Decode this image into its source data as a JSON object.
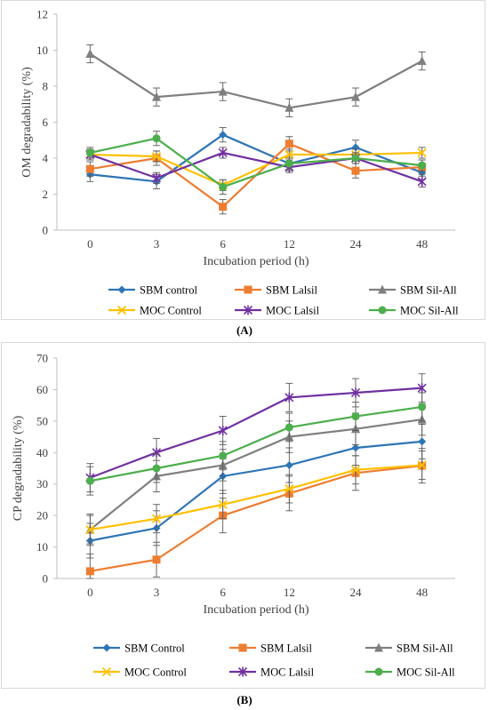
{
  "charts": [
    {
      "id": "A",
      "caption": "(A)",
      "chart_data": {
        "type": "line",
        "categories": [
          "0",
          "3",
          "6",
          "12",
          "24",
          "48"
        ],
        "xlabel": "Incubation period (h)",
        "ylabel": "OM degradability (%)",
        "ylim": [
          0,
          12
        ],
        "yticks": [
          0,
          2,
          4,
          6,
          8,
          10,
          12
        ],
        "grid": false,
        "legend_position": "bottom",
        "series": [
          {
            "name": "SBM control",
            "color": "#2e75b6",
            "marker": "diamond",
            "values": [
              3.1,
              2.7,
              5.3,
              3.7,
              4.6,
              3.2
            ],
            "errors": [
              0.4,
              0.4,
              0.4,
              0.4,
              0.4,
              0.4
            ]
          },
          {
            "name": "SBM Lalsil",
            "color": "#ed7d31",
            "marker": "square",
            "values": [
              3.4,
              4.0,
              1.3,
              4.8,
              3.3,
              3.5
            ],
            "errors": [
              0.4,
              0.4,
              0.4,
              0.4,
              0.4,
              0.4
            ]
          },
          {
            "name": "SBM Sil-All",
            "color": "#7f7f7f",
            "marker": "triangle",
            "values": [
              9.8,
              7.4,
              7.7,
              6.8,
              7.4,
              9.4
            ],
            "errors": [
              0.5,
              0.5,
              0.5,
              0.5,
              0.5,
              0.5
            ]
          },
          {
            "name": "MOC Control",
            "color": "#ffc000",
            "marker": "x",
            "values": [
              4.2,
              4.1,
              2.5,
              4.2,
              4.2,
              4.3
            ],
            "errors": [
              0.3,
              0.3,
              0.3,
              0.3,
              0.3,
              0.3
            ]
          },
          {
            "name": "MOC Lalsil",
            "color": "#7030a0",
            "marker": "star",
            "values": [
              4.2,
              2.9,
              4.3,
              3.5,
              4.0,
              2.7
            ],
            "errors": [
              0.3,
              0.3,
              0.3,
              0.3,
              0.3,
              0.3
            ]
          },
          {
            "name": "MOC Sil-All",
            "color": "#4cae4c",
            "marker": "circle",
            "values": [
              4.3,
              5.1,
              2.4,
              3.7,
              4.0,
              3.6
            ],
            "errors": [
              0.3,
              0.4,
              0.4,
              0.3,
              0.3,
              0.3
            ]
          }
        ]
      }
    },
    {
      "id": "B",
      "caption": "(B)",
      "chart_data": {
        "type": "line",
        "categories": [
          "0",
          "3",
          "6",
          "12",
          "24",
          "48"
        ],
        "xlabel": "Incubation period (h)",
        "ylabel": "CP degradability (%)",
        "ylim": [
          0,
          70
        ],
        "yticks": [
          0,
          10,
          20,
          30,
          40,
          50,
          60,
          70
        ],
        "grid": false,
        "legend_position": "bottom",
        "series": [
          {
            "name": "SBM Control",
            "color": "#2e75b6",
            "marker": "diamond",
            "values": [
              12.0,
              16.0,
              32.5,
              36.0,
              41.5,
              43.5
            ],
            "errors": [
              5.5,
              5.5,
              5.5,
              5.5,
              5.5,
              5.5
            ]
          },
          {
            "name": "SBM Lalsil",
            "color": "#ed7d31",
            "marker": "square",
            "values": [
              2.3,
              6.0,
              20.0,
              27.0,
              33.5,
              35.8
            ],
            "errors": [
              5.5,
              5.5,
              5.5,
              5.5,
              5.5,
              5.5
            ]
          },
          {
            "name": "SBM Sil-All",
            "color": "#7f7f7f",
            "marker": "triangle",
            "values": [
              15.5,
              32.5,
              36.0,
              45.0,
              47.5,
              50.5
            ],
            "errors": [
              5.0,
              5.0,
              5.0,
              5.0,
              5.0,
              5.0
            ]
          },
          {
            "name": "MOC Control",
            "color": "#ffc000",
            "marker": "x",
            "values": [
              15.5,
              19.0,
              23.5,
              28.5,
              34.5,
              36.0
            ],
            "errors": [
              4.5,
              4.5,
              4.5,
              4.5,
              4.5,
              4.5
            ]
          },
          {
            "name": "MOC Lalsil",
            "color": "#7030a0",
            "marker": "star",
            "values": [
              32.0,
              40.0,
              47.0,
              57.5,
              59.0,
              60.5
            ],
            "errors": [
              4.5,
              4.5,
              4.5,
              4.5,
              4.5,
              4.5
            ]
          },
          {
            "name": "MOC Sil-All",
            "color": "#4cae4c",
            "marker": "circle",
            "values": [
              31.0,
              35.0,
              39.0,
              48.0,
              51.5,
              54.5
            ],
            "errors": [
              4.5,
              4.5,
              4.5,
              4.5,
              4.5,
              4.5
            ]
          }
        ]
      }
    }
  ]
}
